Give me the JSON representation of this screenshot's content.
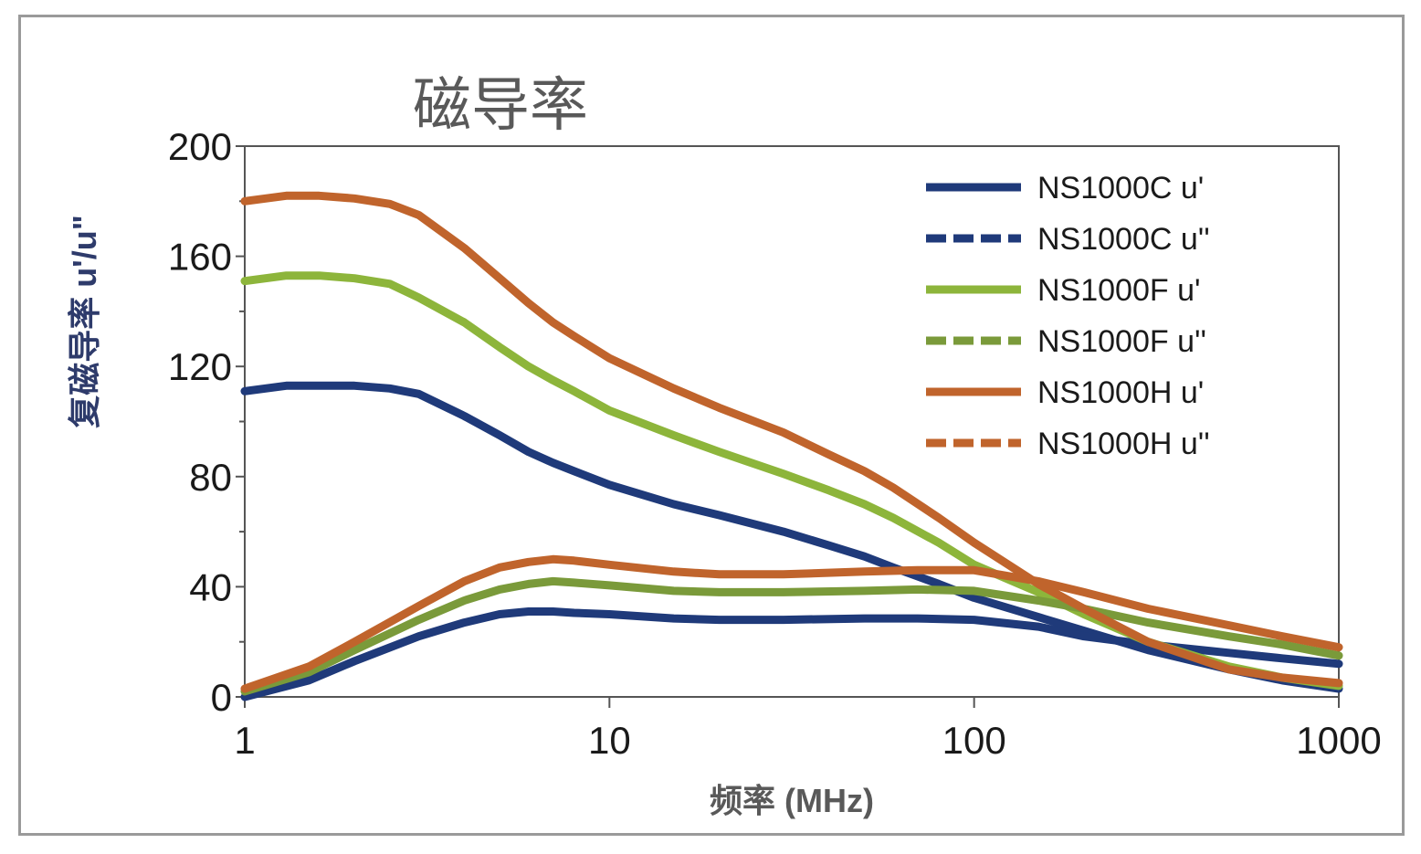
{
  "chart_data": {
    "type": "line",
    "title": "磁导率",
    "xlabel": "频率 (MHz)",
    "ylabel": "复磁导率 u'/u\"",
    "xscale": "log",
    "xlim": [
      1,
      1000
    ],
    "ylim": [
      0,
      200
    ],
    "xticks": [
      1,
      10,
      100,
      1000
    ],
    "xtick_labels": [
      "1",
      "10",
      "100",
      "1000"
    ],
    "yticks": [
      0,
      40,
      80,
      120,
      160,
      200
    ],
    "ytick_labels": [
      "0",
      "40",
      "80",
      "120",
      "160",
      "200"
    ],
    "legend_position": "top-right",
    "series": [
      {
        "name": "NS1000C u'",
        "color": "#1f3a7a",
        "style": "solid",
        "x": [
          1,
          1.3,
          1.6,
          2,
          2.5,
          3,
          4,
          5,
          6,
          7,
          8,
          10,
          15,
          20,
          30,
          40,
          50,
          60,
          80,
          100,
          150,
          200,
          300,
          500,
          700,
          1000
        ],
        "y": [
          111,
          113,
          113,
          113,
          112,
          110,
          102,
          95,
          89,
          85,
          82,
          77,
          70,
          66,
          60,
          55,
          51,
          47,
          41,
          36,
          29,
          24,
          17,
          10,
          6,
          3
        ]
      },
      {
        "name": "NS1000C u''",
        "color": "#1f3a7a",
        "style": "dashed",
        "x": [
          1,
          1.5,
          2,
          3,
          4,
          5,
          6,
          7,
          8,
          10,
          15,
          20,
          30,
          50,
          70,
          100,
          150,
          200,
          300,
          500,
          700,
          1000
        ],
        "y": [
          0,
          6,
          13,
          22,
          27,
          30,
          31,
          31,
          30.5,
          30,
          28.5,
          28,
          28,
          28.5,
          28.5,
          28,
          25.5,
          22,
          19,
          16,
          14,
          12
        ]
      },
      {
        "name": "NS1000F u'",
        "color": "#8db53b",
        "style": "solid",
        "x": [
          1,
          1.3,
          1.6,
          2,
          2.5,
          3,
          4,
          5,
          6,
          7,
          8,
          10,
          15,
          20,
          30,
          40,
          50,
          60,
          80,
          100,
          150,
          200,
          300,
          500,
          700,
          1000
        ],
        "y": [
          151,
          153,
          153,
          152,
          150,
          145,
          136,
          127,
          120,
          115,
          111,
          104,
          95,
          89,
          81,
          75,
          70,
          65,
          56,
          48,
          38,
          30,
          20,
          11,
          7,
          4
        ]
      },
      {
        "name": "NS1000F u''",
        "color": "#7a9a3a",
        "style": "dashed",
        "x": [
          1,
          1.5,
          2,
          3,
          4,
          5,
          6,
          7,
          8,
          10,
          15,
          20,
          30,
          50,
          70,
          100,
          150,
          200,
          300,
          500,
          700,
          1000
        ],
        "y": [
          2,
          9,
          17,
          28,
          35,
          39,
          41,
          42,
          41.5,
          40.5,
          38.5,
          38,
          38,
          38.5,
          39,
          38.5,
          35,
          32,
          27,
          22,
          19,
          15
        ]
      },
      {
        "name": "NS1000H u'",
        "color": "#c0642c",
        "style": "solid",
        "x": [
          1,
          1.3,
          1.6,
          2,
          2.5,
          3,
          4,
          5,
          6,
          7,
          8,
          10,
          15,
          20,
          30,
          40,
          50,
          60,
          80,
          100,
          150,
          200,
          300,
          500,
          700,
          1000
        ],
        "y": [
          180,
          182,
          182,
          181,
          179,
          175,
          163,
          152,
          143,
          136,
          131,
          123,
          112,
          105,
          96,
          88,
          82,
          76,
          65,
          56,
          41,
          32,
          20,
          10,
          7,
          5
        ]
      },
      {
        "name": "NS1000H u''",
        "color": "#c0642c",
        "style": "dashed",
        "x": [
          1,
          1.5,
          2,
          3,
          4,
          5,
          6,
          7,
          8,
          10,
          15,
          20,
          30,
          50,
          70,
          100,
          150,
          200,
          300,
          500,
          700,
          1000
        ],
        "y": [
          3,
          11,
          20,
          33,
          42,
          47,
          49,
          50,
          49.5,
          48,
          45.5,
          44.5,
          44.5,
          45.5,
          46,
          46,
          42,
          38,
          32,
          26,
          22,
          18
        ]
      }
    ]
  }
}
